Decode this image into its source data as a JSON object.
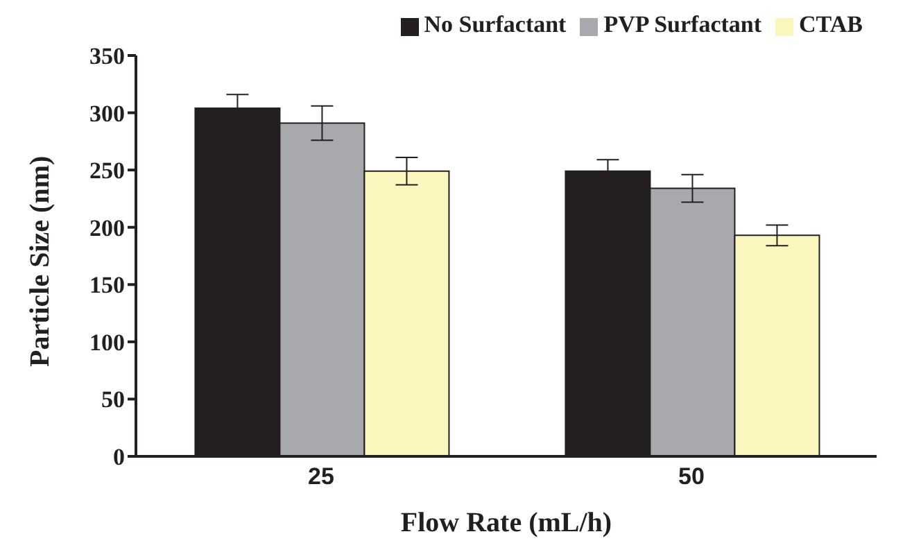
{
  "chart_data": {
    "type": "bar",
    "xlabel": "Flow Rate (mL/h)",
    "ylabel": "Particle Size (nm)",
    "categories": [
      "25",
      "50"
    ],
    "series": [
      {
        "name": "No Surfactant",
        "color": "#231f20",
        "values": [
          304,
          249
        ],
        "errors": [
          12,
          10
        ]
      },
      {
        "name": "PVP Surfactant",
        "color": "#a7a9ac",
        "values": [
          291,
          234
        ],
        "errors": [
          15,
          12
        ]
      },
      {
        "name": "CTAB",
        "color": "#faf6be",
        "values": [
          249,
          193
        ],
        "errors": [
          12,
          9
        ]
      }
    ],
    "ylim": [
      0,
      350
    ],
    "yticks": [
      0,
      50,
      100,
      150,
      200,
      250,
      300,
      350
    ],
    "grid": false,
    "legend": "top right"
  }
}
